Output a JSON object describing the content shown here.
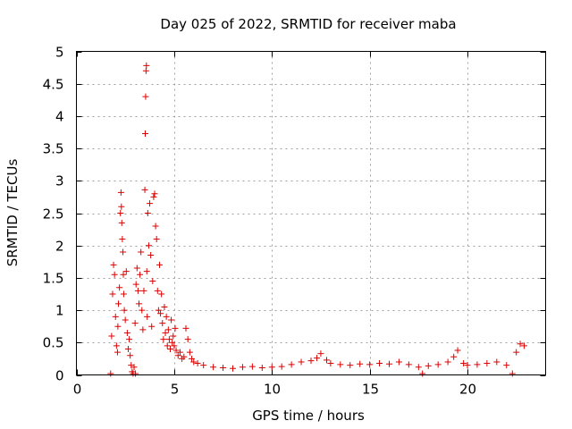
{
  "chart_data": {
    "type": "scatter",
    "title": "Day 025 of 2022, SRMTID for receiver maba",
    "xlabel": "GPS time / hours",
    "ylabel": "SRMTID / TECUs",
    "xlim": [
      0,
      24
    ],
    "ylim": [
      0,
      5
    ],
    "xticks": [
      0,
      5,
      10,
      15,
      20
    ],
    "yticks": [
      0,
      0.5,
      1,
      1.5,
      2,
      2.5,
      3,
      3.5,
      4,
      4.5,
      5
    ],
    "xtick_labels": [
      "0",
      "5",
      "10",
      "15",
      "20"
    ],
    "ytick_labels": [
      "0",
      "0.5",
      "1",
      "1.5",
      "2",
      "2.5",
      "3",
      "3.5",
      "4",
      "4.5",
      "5"
    ],
    "grid": true,
    "marker": "+",
    "color": "#dd0000",
    "series": [
      {
        "name": "SRMTID",
        "points": [
          [
            1.75,
            0.02
          ],
          [
            1.8,
            0.6
          ],
          [
            1.85,
            1.25
          ],
          [
            1.9,
            1.7
          ],
          [
            1.95,
            1.55
          ],
          [
            2.0,
            0.9
          ],
          [
            2.05,
            0.45
          ],
          [
            2.1,
            0.35
          ],
          [
            2.12,
            0.75
          ],
          [
            2.15,
            1.1
          ],
          [
            2.2,
            1.35
          ],
          [
            2.25,
            2.5
          ],
          [
            2.28,
            2.82
          ],
          [
            2.3,
            2.6
          ],
          [
            2.32,
            2.35
          ],
          [
            2.35,
            2.1
          ],
          [
            2.38,
            1.9
          ],
          [
            2.4,
            1.55
          ],
          [
            2.42,
            1.25
          ],
          [
            2.45,
            1.0
          ],
          [
            2.5,
            0.85
          ],
          [
            2.55,
            1.6
          ],
          [
            2.6,
            0.65
          ],
          [
            2.65,
            0.4
          ],
          [
            2.7,
            0.55
          ],
          [
            2.75,
            0.3
          ],
          [
            2.8,
            0.15
          ],
          [
            2.85,
            0.05
          ],
          [
            2.9,
            0.02
          ],
          [
            2.95,
            0.12
          ],
          [
            3.0,
            0.8
          ],
          [
            3.02,
            0.02
          ],
          [
            3.05,
            1.4
          ],
          [
            3.1,
            1.65
          ],
          [
            3.15,
            1.3
          ],
          [
            3.2,
            1.1
          ],
          [
            3.25,
            1.55
          ],
          [
            3.3,
            1.9
          ],
          [
            3.35,
            1.0
          ],
          [
            3.4,
            0.7
          ],
          [
            3.45,
            1.3
          ],
          [
            3.5,
            2.86
          ],
          [
            3.52,
            3.73
          ],
          [
            3.54,
            4.3
          ],
          [
            3.56,
            4.7
          ],
          [
            3.58,
            4.78
          ],
          [
            3.6,
            1.6
          ],
          [
            3.62,
            0.9
          ],
          [
            3.65,
            2.5
          ],
          [
            3.7,
            2.0
          ],
          [
            3.75,
            2.65
          ],
          [
            3.8,
            1.85
          ],
          [
            3.85,
            0.75
          ],
          [
            3.9,
            1.45
          ],
          [
            3.95,
            2.75
          ],
          [
            4.0,
            2.8
          ],
          [
            4.05,
            2.3
          ],
          [
            4.1,
            2.1
          ],
          [
            4.15,
            1.3
          ],
          [
            4.2,
            1.0
          ],
          [
            4.25,
            1.7
          ],
          [
            4.3,
            0.95
          ],
          [
            4.35,
            1.25
          ],
          [
            4.4,
            0.8
          ],
          [
            4.45,
            0.55
          ],
          [
            4.5,
            1.05
          ],
          [
            4.55,
            0.65
          ],
          [
            4.6,
            0.9
          ],
          [
            4.65,
            0.45
          ],
          [
            4.7,
            0.7
          ],
          [
            4.75,
            0.55
          ],
          [
            4.8,
            0.4
          ],
          [
            4.85,
            0.85
          ],
          [
            4.9,
            0.5
          ],
          [
            4.95,
            0.6
          ],
          [
            5.0,
            0.45
          ],
          [
            5.05,
            0.72
          ],
          [
            5.1,
            0.38
          ],
          [
            5.2,
            0.3
          ],
          [
            5.3,
            0.35
          ],
          [
            5.4,
            0.25
          ],
          [
            5.5,
            0.28
          ],
          [
            5.6,
            0.72
          ],
          [
            5.7,
            0.55
          ],
          [
            5.8,
            0.35
          ],
          [
            5.9,
            0.25
          ],
          [
            6.0,
            0.2
          ],
          [
            6.2,
            0.18
          ],
          [
            6.5,
            0.15
          ],
          [
            7.0,
            0.12
          ],
          [
            7.5,
            0.11
          ],
          [
            8.0,
            0.1
          ],
          [
            8.5,
            0.12
          ],
          [
            9.0,
            0.13
          ],
          [
            9.5,
            0.11
          ],
          [
            10.0,
            0.12
          ],
          [
            10.5,
            0.13
          ],
          [
            11.0,
            0.16
          ],
          [
            11.5,
            0.2
          ],
          [
            12.0,
            0.22
          ],
          [
            12.3,
            0.26
          ],
          [
            12.5,
            0.33
          ],
          [
            12.8,
            0.23
          ],
          [
            13.0,
            0.18
          ],
          [
            13.5,
            0.16
          ],
          [
            14.0,
            0.15
          ],
          [
            14.5,
            0.17
          ],
          [
            15.0,
            0.16
          ],
          [
            15.5,
            0.18
          ],
          [
            16.0,
            0.17
          ],
          [
            16.5,
            0.2
          ],
          [
            17.0,
            0.16
          ],
          [
            17.5,
            0.12
          ],
          [
            17.7,
            0.02
          ],
          [
            18.0,
            0.14
          ],
          [
            18.5,
            0.16
          ],
          [
            19.0,
            0.2
          ],
          [
            19.3,
            0.28
          ],
          [
            19.5,
            0.38
          ],
          [
            19.8,
            0.18
          ],
          [
            20.0,
            0.15
          ],
          [
            20.5,
            0.16
          ],
          [
            21.0,
            0.18
          ],
          [
            21.5,
            0.2
          ],
          [
            22.0,
            0.15
          ],
          [
            22.3,
            0.02
          ],
          [
            22.5,
            0.35
          ],
          [
            22.7,
            0.48
          ],
          [
            22.9,
            0.45
          ]
        ]
      }
    ]
  }
}
